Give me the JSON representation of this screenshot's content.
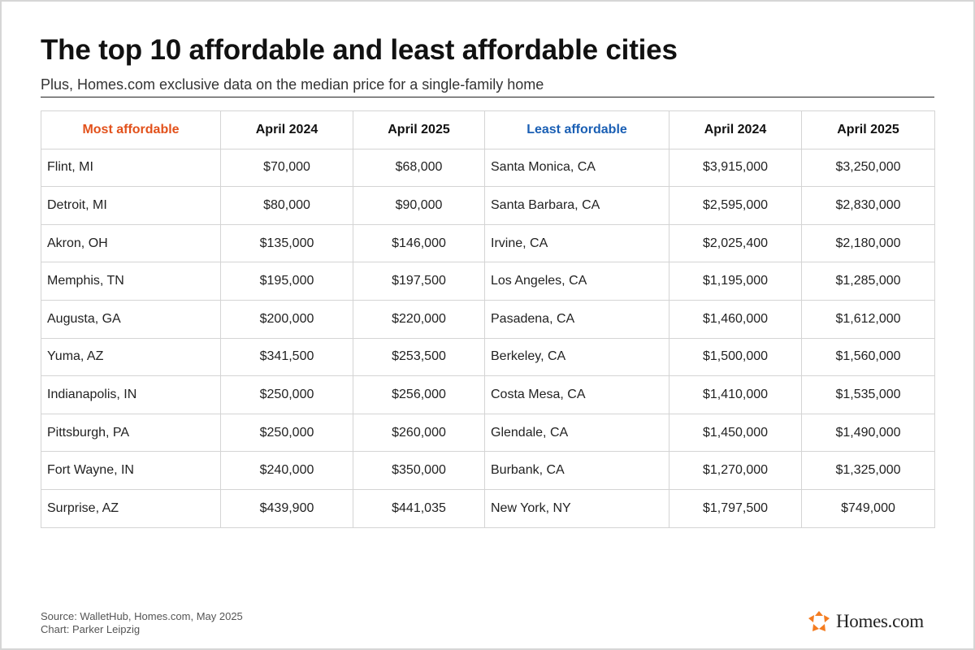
{
  "header": {
    "title": "The top 10 affordable and least affordable cities",
    "subtitle": "Plus, Homes.com exclusive data on the median price for a single-family home"
  },
  "colors": {
    "most_affordable": "#e2511b",
    "least_affordable": "#1a5fb4",
    "logo_orange": "#f47c20"
  },
  "chart_data": {
    "type": "table",
    "columns": [
      "Most affordable",
      "April 2024",
      "April 2025",
      "Least affordable",
      "April 2024",
      "April 2025"
    ],
    "rows": [
      [
        "Flint, MI",
        "$70,000",
        "$68,000",
        "Santa Monica, CA",
        "$3,915,000",
        "$3,250,000"
      ],
      [
        "Detroit, MI",
        "$80,000",
        "$90,000",
        "Santa Barbara, CA",
        "$2,595,000",
        "$2,830,000"
      ],
      [
        "Akron, OH",
        "$135,000",
        "$146,000",
        "Irvine, CA",
        "$2,025,400",
        "$2,180,000"
      ],
      [
        "Memphis, TN",
        "$195,000",
        "$197,500",
        "Los Angeles, CA",
        "$1,195,000",
        "$1,285,000"
      ],
      [
        "Augusta, GA",
        "$200,000",
        "$220,000",
        "Pasadena, CA",
        "$1,460,000",
        "$1,612,000"
      ],
      [
        "Yuma, AZ",
        "$341,500",
        "$253,500",
        "Berkeley, CA",
        "$1,500,000",
        "$1,560,000"
      ],
      [
        "Indianapolis, IN",
        "$250,000",
        "$256,000",
        "Costa Mesa, CA",
        "$1,410,000",
        "$1,535,000"
      ],
      [
        "Pittsburgh, PA",
        "$250,000",
        "$260,000",
        "Glendale, CA",
        "$1,450,000",
        "$1,490,000"
      ],
      [
        "Fort Wayne, IN",
        "$240,000",
        "$350,000",
        "Burbank, CA",
        "$1,270,000",
        "$1,325,000"
      ],
      [
        "Surprise, AZ",
        "$439,900",
        "$441,035",
        "New York, NY",
        "$1,797,500",
        "$749,000"
      ]
    ]
  },
  "footer": {
    "source": "Source: WalletHub, Homes.com, May 2025",
    "credit": "Chart: Parker Leipzig",
    "logo_text": "Homes.com",
    "logo_icon": "homes-com-logo-icon"
  }
}
